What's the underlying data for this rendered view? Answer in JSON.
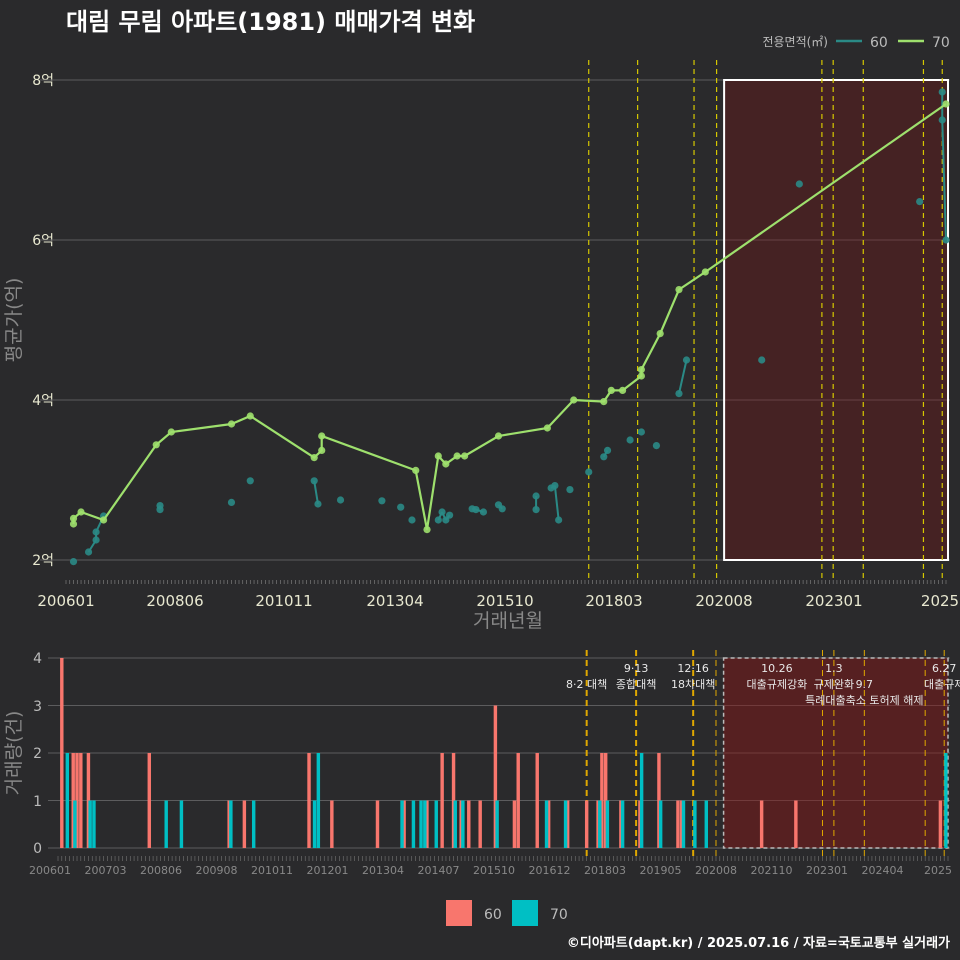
{
  "chart_data": [
    {
      "type": "line",
      "title": "대림 무림 아파트(1981) 매매가격 변화",
      "xlabel": "거래년월",
      "ylabel": "평균가(억)",
      "ytick_labels": [
        "2억",
        "4억",
        "6억",
        "8억"
      ],
      "yticks": [
        2,
        4,
        6,
        8
      ],
      "ylim": [
        1.75,
        8.2
      ],
      "xlim": [
        "2006-01",
        "2025-07"
      ],
      "xtick_labels": [
        "200601",
        "200806",
        "201011",
        "201304",
        "201510",
        "201803",
        "202008",
        "202301",
        "2025"
      ],
      "legend_title": "전용면적(㎡)",
      "legend_position": "top-right",
      "highlight_box": {
        "x": [
          "2020-08",
          "2025-07"
        ],
        "y": [
          2,
          8
        ]
      },
      "policy_lines": [
        "2017-08",
        "2018-09",
        "2019-12",
        "2020-06",
        "2022-10",
        "2023-01",
        "2023-09",
        "2025-01",
        "2025-06"
      ],
      "series": [
        {
          "name": "60",
          "color": "#2a8a86",
          "points": [
            [
              "2006-03",
              1.98
            ],
            [
              "2006-07",
              2.1
            ],
            [
              "2006-09",
              2.25
            ],
            [
              "2006-09",
              2.35
            ],
            [
              "2006-11",
              2.55
            ],
            [
              "2008-02",
              2.63
            ],
            [
              "2008-02",
              2.68
            ],
            [
              "2009-09",
              2.72
            ],
            [
              "2010-02",
              2.99
            ],
            [
              "2011-07",
              2.99
            ],
            [
              "2011-08",
              2.7
            ],
            [
              "2012-02",
              2.75
            ],
            [
              "2013-01",
              2.74
            ],
            [
              "2013-06",
              2.66
            ],
            [
              "2013-09",
              2.5
            ],
            [
              "2014-04",
              2.5
            ],
            [
              "2014-05",
              2.6
            ],
            [
              "2014-06",
              2.5
            ],
            [
              "2014-07",
              2.56
            ],
            [
              "2015-01",
              2.64
            ],
            [
              "2015-02",
              2.63
            ],
            [
              "2015-04",
              2.6
            ],
            [
              "2015-08",
              2.69
            ],
            [
              "2015-09",
              2.64
            ],
            [
              "2016-06",
              2.63
            ],
            [
              "2016-06",
              2.8
            ],
            [
              "2016-10",
              2.9
            ],
            [
              "2016-11",
              2.93
            ],
            [
              "2016-12",
              2.5
            ],
            [
              "2017-03",
              2.88
            ],
            [
              "2017-08",
              3.1
            ],
            [
              "2017-12",
              3.29
            ],
            [
              "2018-01",
              3.37
            ],
            [
              "2018-07",
              3.5
            ],
            [
              "2018-10",
              3.6
            ],
            [
              "2019-02",
              3.43
            ],
            [
              "2019-08",
              4.08
            ],
            [
              "2019-10",
              4.5
            ],
            [
              "2021-06",
              4.5
            ],
            [
              "2022-04",
              6.7
            ],
            [
              "2024-12",
              6.48
            ],
            [
              "2025-06",
              7.85
            ],
            [
              "2025-06",
              7.5
            ],
            [
              "2025-07",
              6.0
            ]
          ]
        },
        {
          "name": "70",
          "color": "#9ee06d",
          "points": [
            [
              "2006-03",
              2.45
            ],
            [
              "2006-03",
              2.52
            ],
            [
              "2006-05",
              2.6
            ],
            [
              "2006-11",
              2.5
            ],
            [
              "2008-01",
              3.44
            ],
            [
              "2008-05",
              3.6
            ],
            [
              "2009-09",
              3.7
            ],
            [
              "2010-02",
              3.8
            ],
            [
              "2011-07",
              3.28
            ],
            [
              "2011-09",
              3.37
            ],
            [
              "2011-09",
              3.55
            ],
            [
              "2013-10",
              3.12
            ],
            [
              "2014-01",
              2.38
            ],
            [
              "2014-04",
              3.3
            ],
            [
              "2014-06",
              3.2
            ],
            [
              "2014-09",
              3.3
            ],
            [
              "2014-11",
              3.3
            ],
            [
              "2015-08",
              3.55
            ],
            [
              "2016-09",
              3.65
            ],
            [
              "2017-04",
              4.0
            ],
            [
              "2017-12",
              3.98
            ],
            [
              "2018-02",
              4.12
            ],
            [
              "2018-05",
              4.12
            ],
            [
              "2018-10",
              4.3
            ],
            [
              "2018-10",
              4.38
            ],
            [
              "2019-03",
              4.83
            ],
            [
              "2019-08",
              5.38
            ],
            [
              "2020-03",
              5.6
            ],
            [
              "2025-07",
              7.7
            ]
          ]
        }
      ]
    },
    {
      "type": "bar",
      "xlabel": "",
      "ylabel": "거래량(건)",
      "ytick_labels": [
        "0",
        "1",
        "2",
        "3",
        "4"
      ],
      "ylim": [
        0,
        4
      ],
      "xtick_labels": [
        "200601",
        "200703",
        "200806",
        "200908",
        "201011",
        "201201",
        "201304",
        "201407",
        "201510",
        "201612",
        "201803",
        "201905",
        "202008",
        "202110",
        "202301",
        "202404",
        "2025"
      ],
      "legend_position": "bottom",
      "highlight_box": {
        "x": [
          "2020-08",
          "2025-07"
        ],
        "y": [
          0,
          4
        ]
      },
      "annotations": [
        {
          "date": "2017-08",
          "label": "8·2 대책",
          "row": 1
        },
        {
          "date": "2018-09",
          "label": "9·13",
          "row": 0
        },
        {
          "date": "2018-09",
          "label": "종합대책",
          "row": 1
        },
        {
          "date": "2019-12",
          "label": "12·16",
          "row": 0
        },
        {
          "date": "2019-12",
          "label": "18차대책",
          "row": 1
        },
        {
          "date": "2021-10",
          "label": "10.26",
          "row": 0
        },
        {
          "date": "2021-10",
          "label": "대출규제강화",
          "row": 1
        },
        {
          "date": "2023-01",
          "label": "1.3",
          "row": 0
        },
        {
          "date": "2023-01",
          "label": "규제완화",
          "row": 1
        },
        {
          "date": "2023-09",
          "label": "9.7",
          "row": 1
        },
        {
          "date": "2023-09",
          "label": "특례대출축소 토허제 해제",
          "row": 2
        },
        {
          "date": "2025-06",
          "label": "6.27",
          "row": 0
        },
        {
          "date": "2025-06",
          "label": "대출규제",
          "row": 1
        }
      ],
      "series": [
        {
          "name": "60",
          "color": "#f8766d",
          "bars": [
            [
              "2006-02",
              4
            ],
            [
              "2006-05",
              2
            ],
            [
              "2006-06",
              2
            ],
            [
              "2006-07",
              2
            ],
            [
              "2006-09",
              2
            ],
            [
              "2008-01",
              2
            ],
            [
              "2009-10",
              1
            ],
            [
              "2010-02",
              1
            ],
            [
              "2011-07",
              2
            ],
            [
              "2012-01",
              1
            ],
            [
              "2013-01",
              1
            ],
            [
              "2013-08",
              1
            ],
            [
              "2014-02",
              1
            ],
            [
              "2014-06",
              2
            ],
            [
              "2014-09",
              2
            ],
            [
              "2014-11",
              1
            ],
            [
              "2015-01",
              1
            ],
            [
              "2015-04",
              1
            ],
            [
              "2015-08",
              3
            ],
            [
              "2016-01",
              1
            ],
            [
              "2016-02",
              2
            ],
            [
              "2016-07",
              2
            ],
            [
              "2016-10",
              1
            ],
            [
              "2017-03",
              1
            ],
            [
              "2017-08",
              1
            ],
            [
              "2017-11",
              1
            ],
            [
              "2017-12",
              2
            ],
            [
              "2018-01",
              2
            ],
            [
              "2018-05",
              1
            ],
            [
              "2018-10",
              1
            ],
            [
              "2019-03",
              2
            ],
            [
              "2019-08",
              1
            ],
            [
              "2019-09",
              1
            ],
            [
              "2021-06",
              1
            ],
            [
              "2022-03",
              1
            ],
            [
              "2025-05",
              1
            ]
          ]
        },
        {
          "name": "70",
          "color": "#00bfc4",
          "bars": [
            [
              "2006-03",
              2
            ],
            [
              "2006-05",
              1
            ],
            [
              "2006-09",
              1
            ],
            [
              "2006-10",
              1
            ],
            [
              "2008-05",
              1
            ],
            [
              "2008-09",
              1
            ],
            [
              "2009-10",
              1
            ],
            [
              "2010-04",
              1
            ],
            [
              "2011-08",
              1
            ],
            [
              "2011-09",
              2
            ],
            [
              "2013-07",
              1
            ],
            [
              "2013-10",
              1
            ],
            [
              "2013-12",
              1
            ],
            [
              "2014-01",
              1
            ],
            [
              "2014-04",
              1
            ],
            [
              "2014-09",
              1
            ],
            [
              "2014-11",
              1
            ],
            [
              "2015-08",
              1
            ],
            [
              "2016-09",
              1
            ],
            [
              "2017-02",
              1
            ],
            [
              "2017-11",
              1
            ],
            [
              "2018-01",
              1
            ],
            [
              "2018-05",
              1
            ],
            [
              "2018-10",
              2
            ],
            [
              "2019-03",
              1
            ],
            [
              "2019-09",
              1
            ],
            [
              "2019-12",
              1
            ],
            [
              "2020-03",
              1
            ],
            [
              "2025-06",
              2
            ]
          ]
        }
      ]
    }
  ],
  "footer": "©디아파트(dapt.kr) / 2025.07.16 / 자료=국토교통부 실거래가"
}
